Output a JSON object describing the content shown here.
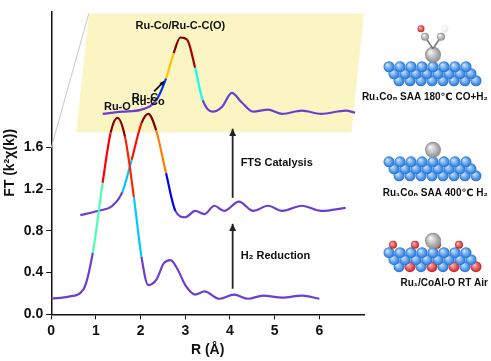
{
  "chart_data": {
    "type": "line",
    "x_label": "R (Å)",
    "y_label": "FT (k²χ(k))",
    "xlim": [
      0,
      7
    ],
    "xticks": [
      0,
      1,
      2,
      3,
      4,
      5,
      6
    ],
    "ylim": [
      0,
      2.9
    ],
    "yticks": [
      {
        "value": 0,
        "label": "0.0"
      },
      0.4,
      0.8,
      1.2,
      1.6
    ],
    "grid": false,
    "marker": "none",
    "series": [
      {
        "name": "Ru₁/CoAl-O RT Air",
        "color": "#6a3fd0",
        "x": [
          0,
          0.39,
          0.72,
          0.93,
          1.15,
          1.33,
          1.48,
          1.65,
          1.85,
          2.02,
          2.17,
          2.35,
          2.52,
          2.67,
          2.83,
          3.0,
          3.22,
          3.43,
          3.76,
          4.09,
          4.41,
          4.74,
          5.17,
          5.61,
          6.0
        ],
        "values": [
          0.15,
          0.17,
          0.24,
          0.59,
          1.26,
          1.74,
          1.88,
          1.7,
          1.12,
          0.55,
          0.28,
          0.33,
          0.49,
          0.52,
          0.43,
          0.28,
          0.19,
          0.22,
          0.15,
          0.19,
          0.15,
          0.18,
          0.16,
          0.18,
          0.15
        ]
      },
      {
        "name": "Ru₁Coₙ SAA 400℃ H₂",
        "color": "#6a3fd0",
        "x": [
          0.65,
          1.04,
          1.37,
          1.59,
          1.8,
          2.02,
          2.17,
          2.35,
          2.57,
          2.78,
          3.0,
          3.22,
          3.43,
          3.65,
          3.87,
          4.2,
          4.52,
          4.85,
          5.17,
          5.61,
          6.04,
          6.59
        ],
        "values": [
          0.95,
          0.99,
          1.04,
          1.17,
          1.48,
          1.83,
          1.92,
          1.76,
          1.35,
          0.99,
          0.93,
          0.99,
          0.96,
          1.04,
          0.99,
          1.08,
          0.99,
          1.04,
          0.99,
          1.04,
          0.99,
          1.02
        ]
      },
      {
        "name": "Ru₁Coₙ SAA 180℃ CO+H₂",
        "color": "#6a3fd0",
        "x": [
          1.15,
          1.59,
          2.02,
          2.35,
          2.57,
          2.74,
          2.89,
          3.04,
          3.22,
          3.39,
          3.61,
          3.83,
          4.04,
          4.26,
          4.52,
          4.85,
          5.17,
          5.61,
          6.04,
          6.59,
          6.8
        ],
        "values": [
          1.92,
          1.94,
          1.96,
          2.05,
          2.26,
          2.5,
          2.65,
          2.63,
          2.36,
          2.05,
          1.94,
          1.99,
          2.12,
          2.03,
          1.94,
          1.96,
          1.92,
          1.95,
          1.92,
          1.95,
          1.93
        ]
      }
    ],
    "annotations": [
      {
        "text": "Ru-O",
        "series": 0
      },
      {
        "text": "Ru-Co",
        "series": 1
      },
      {
        "text": "Ru-Co/Ru-C-C(O)",
        "series": 2
      },
      {
        "text": "Ru-C",
        "series": 2
      }
    ],
    "arrows": [
      {
        "text": "H₂ Reduction",
        "from": 0,
        "to": 1
      },
      {
        "text": "FTS Catalysis",
        "from": 1,
        "to": 2
      }
    ]
  }
}
